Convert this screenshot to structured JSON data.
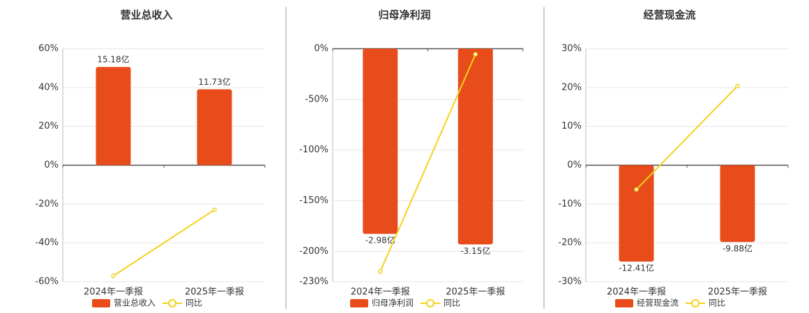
{
  "chart_data": [
    {
      "type": "bar",
      "title": "营业总收入",
      "categories": [
        "2024年一季报",
        "2025年一季报"
      ],
      "series": [
        {
          "name": "营业总收入",
          "color": "#e84c1a",
          "values": [
            15.18,
            11.73
          ],
          "value_labels": [
            "15.18亿",
            "11.73亿"
          ],
          "axis": "y2"
        },
        {
          "name": "同比",
          "color": "#f2d21b",
          "type": "line",
          "values": [
            -57,
            -23
          ]
        }
      ],
      "ylim": [
        -60,
        60
      ],
      "yticks": [
        {
          "value": -60,
          "label": "-60%"
        },
        {
          "value": -40,
          "label": "-40%"
        },
        {
          "value": -20,
          "label": "-20%"
        },
        {
          "value": 0,
          "label": "0%"
        },
        {
          "value": 20,
          "label": "20%"
        },
        {
          "value": 40,
          "label": "40%"
        },
        {
          "value": 60,
          "label": "60%"
        }
      ],
      "y2lim": [
        -18,
        18
      ],
      "grid": true
    },
    {
      "type": "bar",
      "title": "归母净利润",
      "categories": [
        "2024年一季报",
        "2025年一季报"
      ],
      "series": [
        {
          "name": "归母净利润",
          "color": "#e84c1a",
          "values": [
            -2.98,
            -3.15
          ],
          "value_labels": [
            "-2.98亿",
            "-3.15亿"
          ],
          "axis": "y2"
        },
        {
          "name": "同比",
          "color": "#f2d21b",
          "type": "line",
          "values": [
            -220,
            -5.5
          ]
        }
      ],
      "ylim": [
        -230,
        0
      ],
      "yticks": [
        {
          "value": -230,
          "label": "-230%"
        },
        {
          "value": -200,
          "label": "-200%"
        },
        {
          "value": -150,
          "label": "-150%"
        },
        {
          "value": -100,
          "label": "-100%"
        },
        {
          "value": -50,
          "label": "-50%"
        },
        {
          "value": 0,
          "label": "0%"
        }
      ],
      "y2lim": [
        -3.75,
        0
      ],
      "grid": true
    },
    {
      "type": "bar",
      "title": "经营现金流",
      "categories": [
        "2024年一季报",
        "2025年一季报"
      ],
      "series": [
        {
          "name": "经营现金流",
          "color": "#e84c1a",
          "values": [
            -12.41,
            -9.88
          ],
          "value_labels": [
            "-12.41亿",
            "-9.88亿"
          ],
          "axis": "y2"
        },
        {
          "name": "同比",
          "color": "#f2d21b",
          "type": "line",
          "values": [
            -6.25,
            20.4
          ]
        }
      ],
      "ylim": [
        -30,
        30
      ],
      "yticks": [
        {
          "value": -30,
          "label": "-30%"
        },
        {
          "value": -20,
          "label": "-20%"
        },
        {
          "value": -10,
          "label": "-10%"
        },
        {
          "value": 0,
          "label": "0%"
        },
        {
          "value": 10,
          "label": "10%"
        },
        {
          "value": 20,
          "label": "20%"
        },
        {
          "value": 30,
          "label": "30%"
        }
      ],
      "y2lim": [
        -15,
        15
      ],
      "grid": true
    }
  ]
}
